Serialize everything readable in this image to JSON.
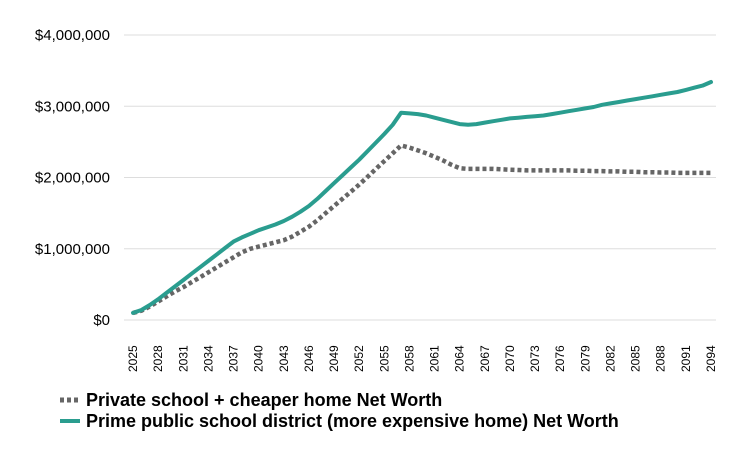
{
  "chart_data": {
    "type": "line",
    "title": "",
    "xlabel": "",
    "ylabel": "",
    "ylim": [
      0,
      4000000
    ],
    "yticks": [
      0,
      1000000,
      2000000,
      3000000,
      4000000
    ],
    "ytick_labels": [
      "$0",
      "$1,000,000",
      "$2,000,000",
      "$3,000,000",
      "$4,000,000"
    ],
    "x": [
      2025,
      2026,
      2027,
      2028,
      2029,
      2030,
      2031,
      2032,
      2033,
      2034,
      2035,
      2036,
      2037,
      2038,
      2039,
      2040,
      2041,
      2042,
      2043,
      2044,
      2045,
      2046,
      2047,
      2048,
      2049,
      2050,
      2051,
      2052,
      2053,
      2054,
      2055,
      2056,
      2057,
      2058,
      2059,
      2060,
      2061,
      2062,
      2063,
      2064,
      2065,
      2066,
      2067,
      2068,
      2069,
      2070,
      2071,
      2072,
      2073,
      2074,
      2075,
      2076,
      2077,
      2078,
      2079,
      2080,
      2081,
      2082,
      2083,
      2084,
      2085,
      2086,
      2087,
      2088,
      2089,
      2090,
      2091,
      2092,
      2093,
      2094
    ],
    "xtick_labels": [
      "2025",
      "2028",
      "2031",
      "2034",
      "2037",
      "2040",
      "2043",
      "2046",
      "2049",
      "2052",
      "2055",
      "2058",
      "2061",
      "2064",
      "2067",
      "2070",
      "2073",
      "2076",
      "2079",
      "2082",
      "2085",
      "2088",
      "2091",
      "2094"
    ],
    "series": [
      {
        "name": "Private school + cheaper home Net Worth",
        "color": "#666666",
        "style": "dotted",
        "values": [
          100000,
          130000,
          190000,
          260000,
          330000,
          400000,
          460000,
          530000,
          600000,
          670000,
          740000,
          810000,
          880000,
          950000,
          1000000,
          1030000,
          1060000,
          1090000,
          1120000,
          1170000,
          1240000,
          1310000,
          1400000,
          1500000,
          1600000,
          1700000,
          1800000,
          1900000,
          2010000,
          2120000,
          2230000,
          2340000,
          2450000,
          2420000,
          2380000,
          2340000,
          2290000,
          2240000,
          2180000,
          2130000,
          2120000,
          2120000,
          2120000,
          2120000,
          2115000,
          2110000,
          2105000,
          2100000,
          2100000,
          2100000,
          2100000,
          2100000,
          2100000,
          2095000,
          2095000,
          2090000,
          2090000,
          2085000,
          2085000,
          2080000,
          2080000,
          2075000,
          2075000,
          2070000,
          2070000,
          2065000,
          2065000,
          2065000,
          2065000,
          2065000
        ]
      },
      {
        "name": "Prime public school district (more expensive home) Net Worth",
        "color": "#2a9d8f",
        "style": "solid",
        "values": [
          100000,
          140000,
          210000,
          290000,
          380000,
          470000,
          560000,
          650000,
          740000,
          830000,
          920000,
          1010000,
          1100000,
          1160000,
          1210000,
          1260000,
          1300000,
          1340000,
          1390000,
          1450000,
          1520000,
          1600000,
          1700000,
          1810000,
          1920000,
          2030000,
          2140000,
          2250000,
          2370000,
          2490000,
          2610000,
          2740000,
          2910000,
          2900000,
          2890000,
          2870000,
          2840000,
          2810000,
          2780000,
          2750000,
          2740000,
          2750000,
          2770000,
          2790000,
          2810000,
          2830000,
          2840000,
          2850000,
          2860000,
          2870000,
          2890000,
          2910000,
          2930000,
          2950000,
          2970000,
          2990000,
          3020000,
          3040000,
          3060000,
          3080000,
          3100000,
          3120000,
          3140000,
          3160000,
          3180000,
          3200000,
          3230000,
          3260000,
          3290000,
          3340000
        ]
      }
    ]
  }
}
